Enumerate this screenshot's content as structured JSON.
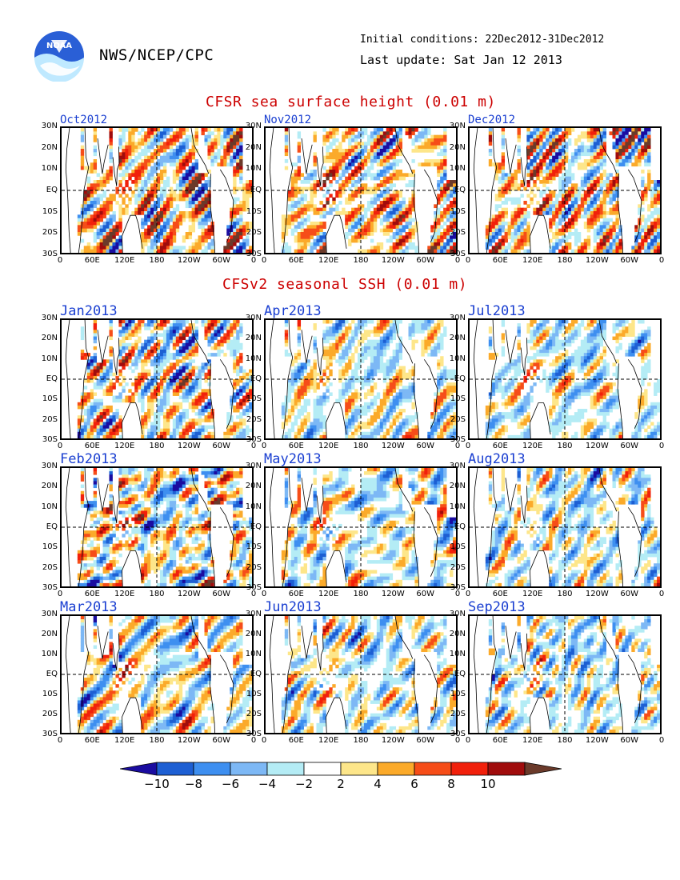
{
  "header": {
    "org": "NWS/NCEP/CPC",
    "initial_conditions": "Initial conditions: 22Dec2012-31Dec2012",
    "last_update": "Last update: Sat Jan 12 2013",
    "logo_text": "NOAA"
  },
  "sections": {
    "observed_title": "CFSR sea surface height (0.01 m)",
    "forecast_title": "CFSv2 seasonal SSH (0.01 m)"
  },
  "axes": {
    "y_ticks": [
      "30N",
      "20N",
      "10N",
      "EQ",
      "10S",
      "20S",
      "30S"
    ],
    "x_ticks": [
      "0",
      "60E",
      "120E",
      "180",
      "120W",
      "60W",
      "0"
    ]
  },
  "colorbar": {
    "labels": [
      "−10",
      "−8",
      "−6",
      "−4",
      "−2",
      "2",
      "4",
      "6",
      "8",
      "10"
    ],
    "colors": [
      "#1a0ca0",
      "#1d5fd3",
      "#3e8ff0",
      "#7db8f5",
      "#b4ecf5",
      "#ffffff",
      "#fde68a",
      "#fbaa2a",
      "#f64d18",
      "#f1200b",
      "#a00c0c",
      "#6b3a2a"
    ]
  },
  "panels": [
    {
      "id": "oct2012",
      "label": "Oct2012",
      "seed": 11,
      "bias": 0.15,
      "amp": 1.0
    },
    {
      "id": "nov2012",
      "label": "Nov2012",
      "seed": 23,
      "bias": 0.12,
      "amp": 1.0
    },
    {
      "id": "dec2012",
      "label": "Dec2012",
      "seed": 37,
      "bias": 0.1,
      "amp": 1.0
    },
    {
      "id": "jan2013",
      "label": "Jan2013",
      "seed": 41,
      "bias": -0.1,
      "amp": 0.9
    },
    {
      "id": "apr2013",
      "label": "Apr2013",
      "seed": 53,
      "bias": -0.18,
      "amp": 0.8
    },
    {
      "id": "jul2013",
      "label": "Jul2013",
      "seed": 67,
      "bias": -0.25,
      "amp": 0.7
    },
    {
      "id": "feb2013",
      "label": "Feb2013",
      "seed": 71,
      "bias": -0.12,
      "amp": 0.9
    },
    {
      "id": "may2013",
      "label": "May2013",
      "seed": 83,
      "bias": -0.2,
      "amp": 0.8
    },
    {
      "id": "aug2013",
      "label": "Aug2013",
      "seed": 97,
      "bias": -0.25,
      "amp": 0.7
    },
    {
      "id": "mar2013",
      "label": "Mar2013",
      "seed": 101,
      "bias": -0.15,
      "amp": 0.85
    },
    {
      "id": "jun2013",
      "label": "Jun2013",
      "seed": 113,
      "bias": -0.22,
      "amp": 0.75
    },
    {
      "id": "sep2013",
      "label": "Sep2013",
      "seed": 127,
      "bias": -0.28,
      "amp": 0.7
    }
  ]
}
